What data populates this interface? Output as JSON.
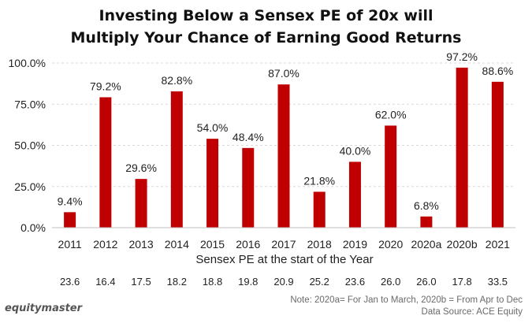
{
  "title": {
    "line1": "Investing Below a Sensex PE of 20x will",
    "line2": "Multiply Your Chance of Earning Good Returns"
  },
  "colors": {
    "bar": "#c00000",
    "grid": "#d9d9d9",
    "text": "#222222"
  },
  "chart_data": {
    "type": "bar",
    "categories": [
      "2011",
      "2012",
      "2013",
      "2014",
      "2015",
      "2016",
      "2017",
      "2018",
      "2019",
      "2020",
      "2020a",
      "2020b",
      "2021"
    ],
    "values": [
      9.4,
      79.2,
      29.6,
      82.8,
      54.0,
      48.4,
      87.0,
      21.8,
      40.0,
      62.0,
      6.8,
      97.2,
      88.6
    ],
    "data_labels": [
      "9.4%",
      "79.2%",
      "29.6%",
      "82.8%",
      "54.0%",
      "48.4%",
      "87.0%",
      "21.8%",
      "40.0%",
      "62.0%",
      "6.8%",
      "97.2%",
      "88.6%"
    ],
    "ylim": [
      0,
      100
    ],
    "yticks": [
      0,
      25,
      50,
      75,
      100
    ],
    "ytick_labels": [
      "0.0%",
      "25.0%",
      "50.0%",
      "75.0%",
      "100.0%"
    ],
    "xlabel": "Sensex PE at the start of the Year",
    "ylabel": "",
    "grid": true,
    "legend": "none",
    "pe_values": [
      "23.6",
      "16.4",
      "17.5",
      "18.2",
      "18.8",
      "19.8",
      "20.9",
      "25.2",
      "23.6",
      "26.0",
      "26.0",
      "17.8",
      "33.5"
    ]
  },
  "footer": {
    "note": "Note: 2020a= For Jan to March, 2020b = From Apr to Dec",
    "source": "Data Source: ACE Equity",
    "brand": "equitymaster"
  }
}
